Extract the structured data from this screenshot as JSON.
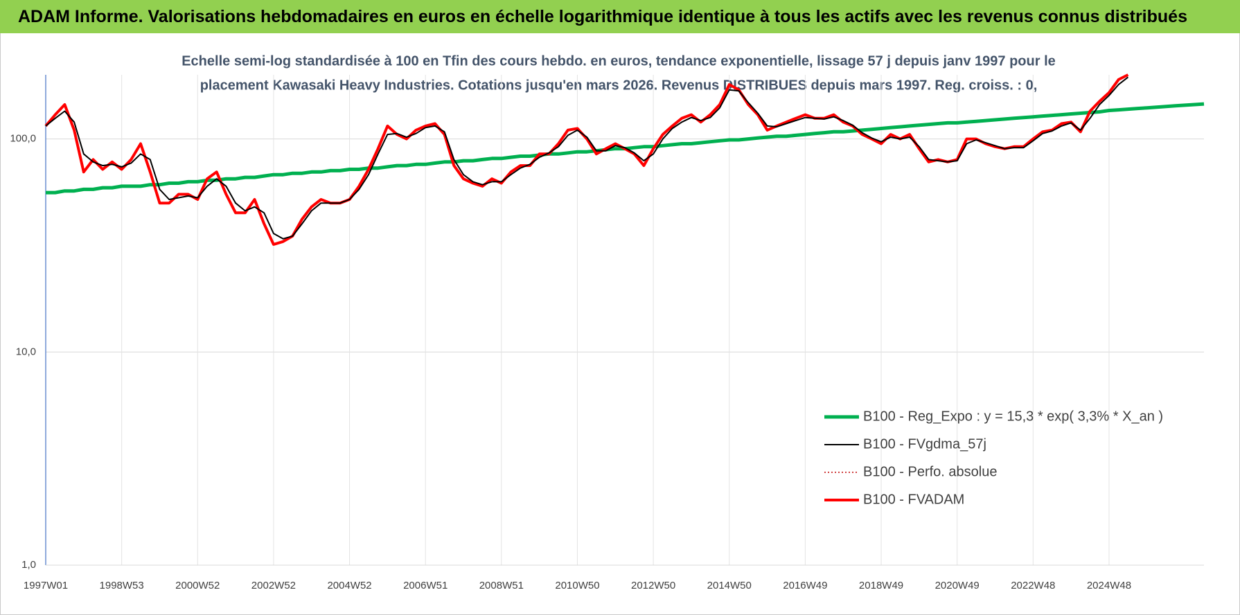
{
  "header": {
    "title": "ADAM Informe. Valorisations hebdomadaires en euros en échelle logarithmique identique à tous les actifs avec les revenus connus distribués"
  },
  "chart_data": {
    "type": "line",
    "title": [
      "Echelle semi-log standardisée à 100 en Tfin des cours hebdo. en euros, tendance exponentielle, lissage 57 j depuis janv 1997 pour le",
      "placement Kawasaki Heavy Industries. Cotations jusqu'en mars 2026. Revenus DISTRIBUES depuis mars 1997. Reg. croiss. : 0,"
    ],
    "log_scale": true,
    "grid": true,
    "ylim": [
      1,
      200
    ],
    "yticks": [
      {
        "value": 1,
        "label": "1,0"
      },
      {
        "value": 10,
        "label": "10,0"
      },
      {
        "value": 100,
        "label": "100,0"
      }
    ],
    "categories": [
      "1997W01",
      null,
      null,
      null,
      null,
      null,
      null,
      null,
      "1998W53",
      null,
      null,
      null,
      null,
      null,
      null,
      null,
      "2000W52",
      null,
      null,
      null,
      null,
      null,
      null,
      null,
      "2002W52",
      null,
      null,
      null,
      null,
      null,
      null,
      null,
      "2004W52",
      null,
      null,
      null,
      null,
      null,
      null,
      null,
      "2006W51",
      null,
      null,
      null,
      null,
      null,
      null,
      null,
      "2008W51",
      null,
      null,
      null,
      null,
      null,
      null,
      null,
      "2010W50",
      null,
      null,
      null,
      null,
      null,
      null,
      null,
      "2012W50",
      null,
      null,
      null,
      null,
      null,
      null,
      null,
      "2014W50",
      null,
      null,
      null,
      null,
      null,
      null,
      null,
      "2016W49",
      null,
      null,
      null,
      null,
      null,
      null,
      null,
      "2018W49",
      null,
      null,
      null,
      null,
      null,
      null,
      null,
      "2020W49",
      null,
      null,
      null,
      null,
      null,
      null,
      null,
      "2022W48",
      null,
      null,
      null,
      null,
      null,
      null,
      null,
      "2024W48",
      null,
      null,
      null,
      null,
      null,
      null,
      null,
      null,
      null,
      null
    ],
    "series": [
      {
        "name": "B100 - Reg_Expo : y = 15,3 * exp( 3,3% *  X_an )",
        "color": "#00b050",
        "line_width": 5,
        "style": "solid",
        "values": [
          56,
          56,
          57,
          57,
          58,
          58,
          59,
          59,
          60,
          60,
          60,
          61,
          61,
          62,
          62,
          63,
          63,
          64,
          64,
          65,
          65,
          66,
          66,
          67,
          68,
          68,
          69,
          69,
          70,
          70,
          71,
          71,
          72,
          72,
          73,
          73,
          74,
          75,
          75,
          76,
          76,
          77,
          78,
          78,
          79,
          79,
          80,
          81,
          81,
          82,
          83,
          83,
          84,
          85,
          85,
          86,
          87,
          87,
          88,
          89,
          90,
          90,
          91,
          92,
          92,
          93,
          94,
          95,
          95,
          96,
          97,
          98,
          99,
          99,
          100,
          101,
          102,
          103,
          103,
          104,
          105,
          106,
          107,
          108,
          108,
          109,
          110,
          111,
          112,
          113,
          114,
          115,
          116,
          117,
          118,
          119,
          119,
          120,
          121,
          122,
          123,
          124,
          125,
          126,
          127,
          128,
          129,
          130,
          131,
          132,
          133,
          134,
          136,
          137,
          138,
          139,
          140,
          141,
          142,
          143,
          144,
          145,
          146
        ]
      },
      {
        "name": "B100 - FVgdma_57j",
        "color": "#000000",
        "line_width": 2,
        "style": "solid",
        "values": [
          115,
          125,
          135,
          120,
          85,
          78,
          75,
          76,
          74,
          77,
          85,
          80,
          58,
          52,
          53,
          54,
          53,
          60,
          65,
          60,
          50,
          46,
          48,
          45,
          36,
          34,
          35,
          40,
          46,
          50,
          50,
          50,
          52,
          58,
          68,
          85,
          105,
          106,
          102,
          106,
          113,
          115,
          108,
          80,
          68,
          63,
          61,
          63,
          63,
          68,
          73,
          76,
          82,
          86,
          92,
          104,
          110,
          102,
          88,
          88,
          93,
          91,
          86,
          79,
          85,
          100,
          112,
          120,
          126,
          122,
          126,
          140,
          170,
          168,
          148,
          132,
          115,
          114,
          118,
          122,
          126,
          125,
          124,
          127,
          122,
          116,
          107,
          101,
          97,
          102,
          100,
          102,
          92,
          80,
          79,
          78,
          79,
          95,
          99,
          96,
          93,
          90,
          91,
          91,
          98,
          106,
          109,
          115,
          119,
          110,
          125,
          145,
          160,
          180,
          195,
          null,
          null,
          null,
          null,
          null,
          null,
          null,
          null
        ]
      },
      {
        "name": "B100 - Perfo. absolue",
        "color": "#c00000",
        "line_width": 1.5,
        "style": "dotted",
        "values": [
          115,
          130,
          145,
          110,
          70,
          80,
          72,
          78,
          72,
          80,
          95,
          70,
          50,
          50,
          55,
          55,
          52,
          65,
          70,
          55,
          45,
          45,
          52,
          40,
          32,
          33,
          35,
          42,
          48,
          52,
          50,
          50,
          52,
          60,
          72,
          90,
          115,
          105,
          100,
          110,
          115,
          118,
          105,
          75,
          65,
          62,
          60,
          65,
          62,
          70,
          75,
          75,
          85,
          85,
          95,
          110,
          112,
          100,
          85,
          90,
          95,
          90,
          85,
          75,
          90,
          105,
          115,
          125,
          130,
          120,
          130,
          145,
          180,
          170,
          145,
          130,
          110,
          115,
          120,
          125,
          130,
          125,
          125,
          130,
          120,
          115,
          105,
          100,
          95,
          105,
          100,
          105,
          90,
          78,
          80,
          78,
          80,
          100,
          100,
          95,
          92,
          90,
          92,
          92,
          100,
          108,
          110,
          118,
          120,
          108,
          135,
          150,
          165,
          190,
          200,
          null,
          null,
          null,
          null,
          null,
          null,
          null,
          null
        ]
      },
      {
        "name": "B100 - FVADAM",
        "color": "#ff0000",
        "line_width": 4,
        "style": "solid",
        "values": [
          115,
          130,
          145,
          110,
          70,
          80,
          72,
          78,
          72,
          80,
          95,
          70,
          50,
          50,
          55,
          55,
          52,
          65,
          70,
          55,
          45,
          45,
          52,
          40,
          32,
          33,
          35,
          42,
          48,
          52,
          50,
          50,
          52,
          60,
          72,
          90,
          115,
          105,
          100,
          110,
          115,
          118,
          105,
          75,
          65,
          62,
          60,
          65,
          62,
          70,
          75,
          75,
          85,
          85,
          95,
          110,
          112,
          100,
          85,
          90,
          95,
          90,
          85,
          75,
          90,
          105,
          115,
          125,
          130,
          120,
          130,
          145,
          180,
          170,
          145,
          130,
          110,
          115,
          120,
          125,
          130,
          125,
          125,
          130,
          120,
          115,
          105,
          100,
          95,
          105,
          100,
          105,
          90,
          78,
          80,
          78,
          80,
          100,
          100,
          95,
          92,
          90,
          92,
          92,
          100,
          108,
          110,
          118,
          120,
          108,
          135,
          150,
          165,
          190,
          200,
          null,
          null,
          null,
          null,
          null,
          null,
          null,
          null
        ]
      }
    ]
  }
}
